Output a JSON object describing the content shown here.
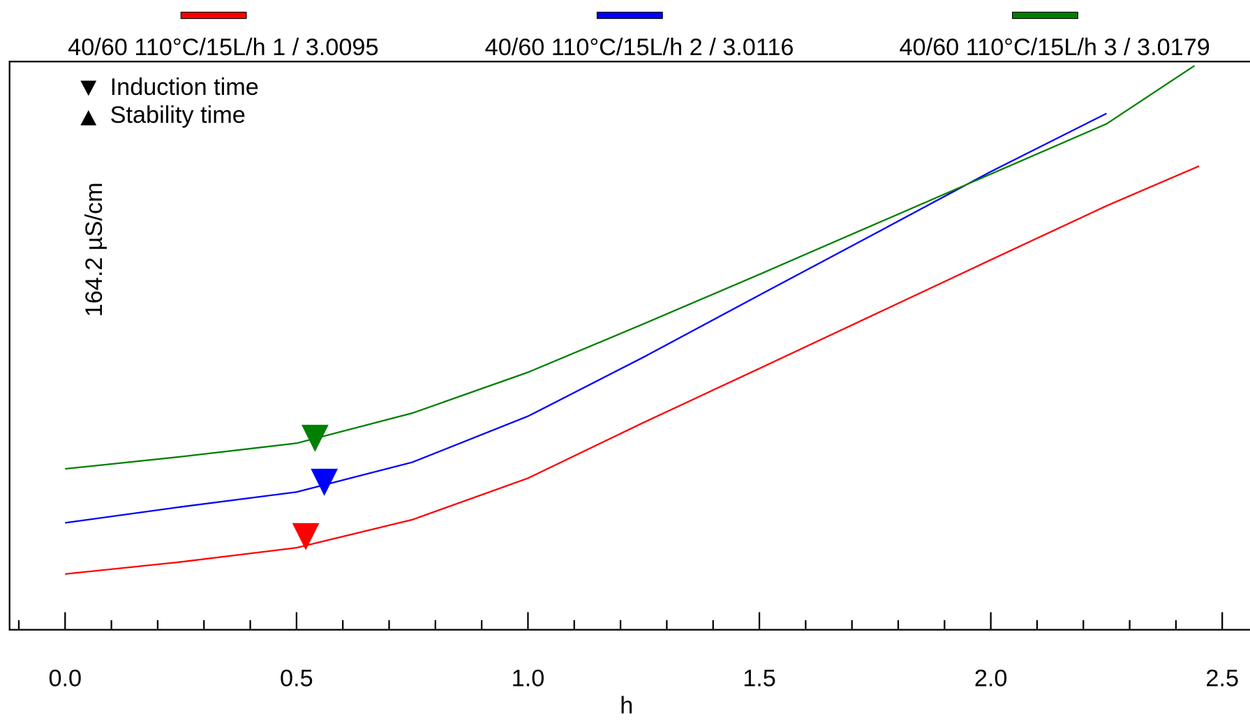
{
  "chart_data": {
    "type": "line",
    "x_label": "h",
    "y_label": "164.2 µS/cm",
    "marker_legend": [
      "Induction time",
      "Stability time"
    ],
    "xlim": [
      -0.12,
      2.56
    ],
    "ylim": [
      0,
      164.2
    ],
    "xticks": [
      {
        "value": 0,
        "label": "0.0"
      },
      0.5,
      {
        "value": 1,
        "label": "1.0"
      },
      1.5,
      {
        "value": 2,
        "label": "2.0"
      },
      2.5
    ],
    "xminorticks": [
      -0.1,
      0.1,
      0.2,
      0.3,
      0.4,
      0.6,
      0.7,
      0.8,
      0.9,
      1.1,
      1.2,
      1.3,
      1.4,
      1.6,
      1.7,
      1.8,
      1.9,
      2.1,
      2.2,
      2.3,
      2.4
    ],
    "series": [
      {
        "name": "40/60 110°C/15L/h 1 / 3.0095",
        "color": "#ff0000",
        "x": [
          0,
          0.25,
          0.5,
          0.75,
          1.0,
          1.25,
          1.5,
          1.75,
          2.0,
          2.25,
          2.45
        ],
        "values": [
          16.1,
          19.6,
          23.7,
          31.8,
          43.8,
          59.9,
          75.5,
          91.2,
          106.9,
          122.5,
          134.0
        ],
        "induction": {
          "x": 0.52,
          "y": 23.0
        }
      },
      {
        "name": "40/60 110°C/15L/h 2 / 3.0116",
        "color": "#0000ff",
        "x": [
          0,
          0.25,
          0.5,
          0.75,
          1.0,
          1.25,
          1.5,
          1.75,
          2.0,
          2.25
        ],
        "values": [
          30.9,
          35.5,
          39.8,
          48.4,
          61.7,
          78.8,
          96.7,
          114.5,
          132.4,
          149.2
        ],
        "induction": {
          "x": 0.56,
          "y": 38.7
        }
      },
      {
        "name": "40/60 110°C/15L/h 3 / 3.0179",
        "color": "#008000",
        "x": [
          0,
          0.25,
          0.5,
          0.75,
          1.0,
          1.25,
          1.5,
          1.75,
          2.0,
          2.25,
          2.44
        ],
        "values": [
          46.5,
          50.0,
          53.9,
          62.6,
          74.4,
          88.4,
          102.7,
          117.2,
          131.7,
          146.2,
          163.0
        ],
        "induction": {
          "x": 0.54,
          "y": 51.4
        }
      }
    ]
  }
}
